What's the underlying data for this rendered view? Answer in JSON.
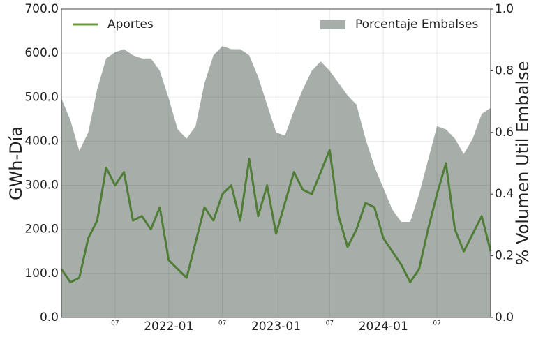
{
  "chart_data": {
    "type": "line-area",
    "y_label": "GWh-Día",
    "y2_label": "% Volumen Util Embalse",
    "x": [
      "2021-01",
      "2021-02",
      "2021-03",
      "2021-04",
      "2021-05",
      "2021-06",
      "2021-07",
      "2021-08",
      "2021-09",
      "2021-10",
      "2021-11",
      "2021-12",
      "2022-01",
      "2022-02",
      "2022-03",
      "2022-04",
      "2022-05",
      "2022-06",
      "2022-07",
      "2022-08",
      "2022-09",
      "2022-10",
      "2022-11",
      "2022-12",
      "2023-01",
      "2023-02",
      "2023-03",
      "2023-04",
      "2023-05",
      "2023-06",
      "2023-07",
      "2023-08",
      "2023-09",
      "2023-10",
      "2023-11",
      "2023-12",
      "2024-01",
      "2024-02",
      "2024-03",
      "2024-04",
      "2024-05",
      "2024-06",
      "2024-07",
      "2024-08",
      "2024-09",
      "2024-10",
      "2024-11",
      "2024-12",
      "2025-01"
    ],
    "series": [
      {
        "name": "Aportes",
        "color": "#4f7d36",
        "legend_color": "#6a9a3c",
        "kind": "line",
        "values": [
          110,
          80,
          90,
          180,
          220,
          340,
          300,
          330,
          220,
          230,
          200,
          250,
          130,
          110,
          90,
          170,
          250,
          220,
          280,
          300,
          220,
          360,
          230,
          300,
          190,
          260,
          330,
          290,
          280,
          330,
          380,
          230,
          160,
          200,
          260,
          250,
          180,
          150,
          120,
          80,
          110,
          200,
          280,
          350,
          200,
          150,
          190,
          230,
          150
        ]
      },
      {
        "name": "Porcentaje Embalses",
        "color": "#a7aeaa",
        "kind": "area",
        "axis": "y2",
        "values": [
          0.71,
          0.64,
          0.54,
          0.6,
          0.74,
          0.84,
          0.86,
          0.87,
          0.85,
          0.84,
          0.84,
          0.8,
          0.71,
          0.61,
          0.58,
          0.62,
          0.76,
          0.85,
          0.88,
          0.87,
          0.87,
          0.85,
          0.78,
          0.69,
          0.6,
          0.59,
          0.67,
          0.74,
          0.8,
          0.83,
          0.8,
          0.76,
          0.72,
          0.69,
          0.58,
          0.49,
          0.42,
          0.35,
          0.31,
          0.31,
          0.4,
          0.51,
          0.62,
          0.61,
          0.58,
          0.53,
          0.58,
          0.66,
          0.68
        ]
      }
    ],
    "xlim": [
      "2021-01",
      "2025-01"
    ],
    "xticks": [
      {
        "value": "2021-07",
        "label": "07"
      },
      "2022-01",
      {
        "value": "2022-07",
        "label": "07"
      },
      "2023-01",
      {
        "value": "2023-07",
        "label": "07"
      },
      "2024-01",
      {
        "value": "2024-07",
        "label": "07"
      }
    ],
    "ylim": [
      0,
      700
    ],
    "yticks": [
      {
        "value": 0,
        "label": "0.0"
      },
      {
        "value": 100,
        "label": "100.0"
      },
      {
        "value": 200,
        "label": "200.0"
      },
      {
        "value": 300,
        "label": "300.0"
      },
      {
        "value": 400,
        "label": "400.0"
      },
      {
        "value": 500,
        "label": "500.0"
      },
      {
        "value": 600,
        "label": "600.0"
      },
      {
        "value": 700,
        "label": "700.0"
      }
    ],
    "y2lim": [
      0,
      1
    ],
    "y2ticks": [
      {
        "value": 0,
        "label": "0.0"
      },
      0.2,
      0.4,
      0.6,
      0.8,
      {
        "value": 1,
        "label": "1.0"
      }
    ],
    "grid": true
  }
}
